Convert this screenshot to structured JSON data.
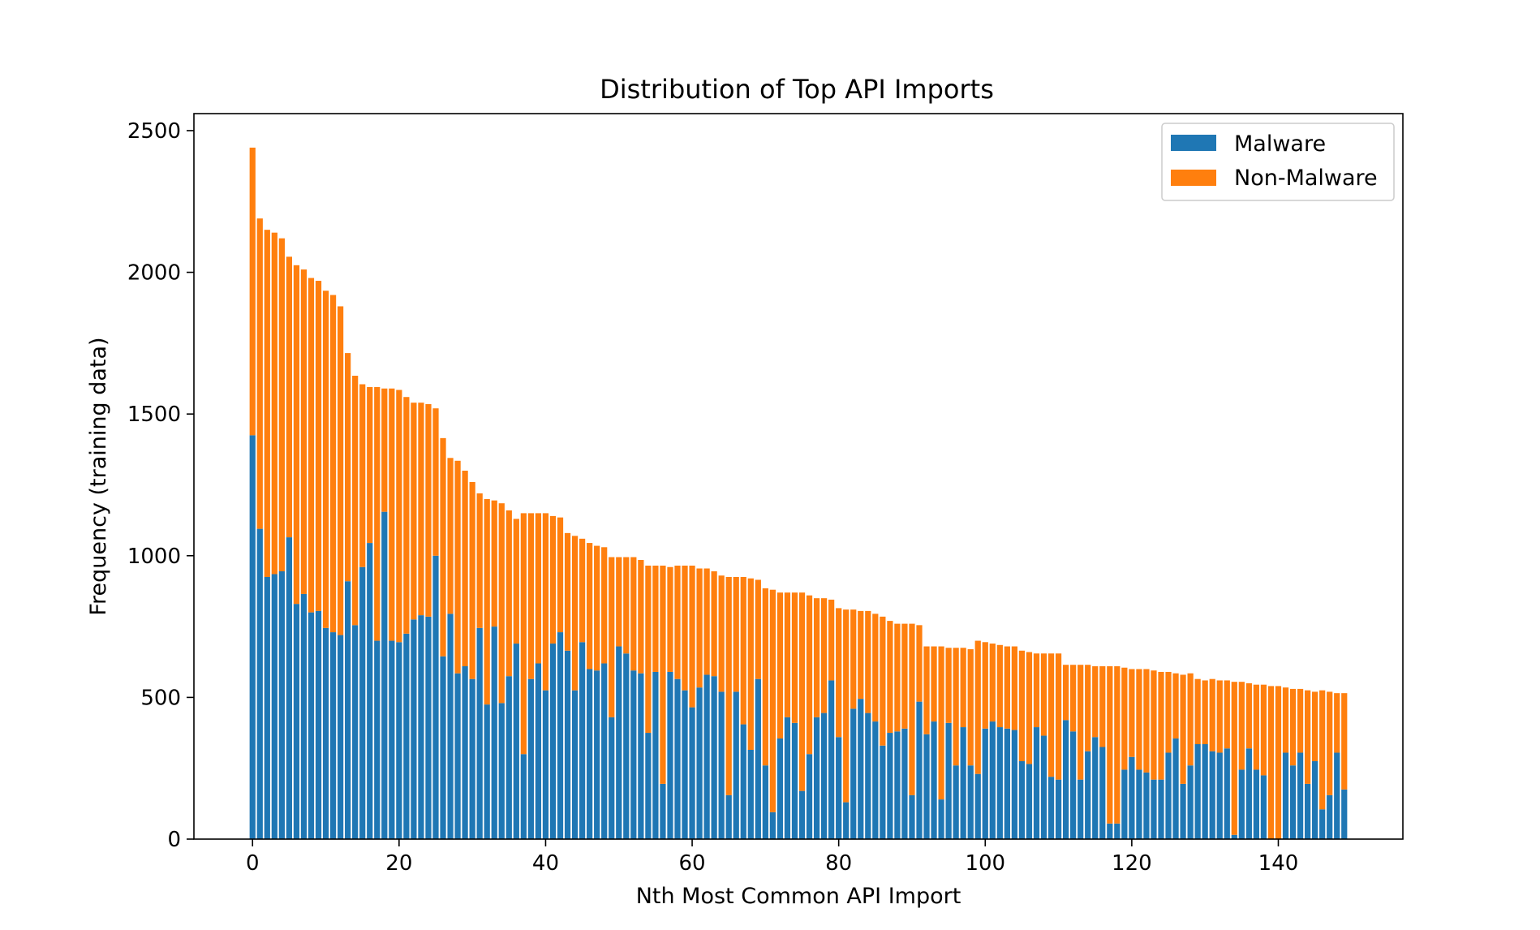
{
  "chart_data": {
    "type": "bar",
    "stacked": true,
    "title": "Distribution of Top API Imports",
    "xlabel": "Nth Most Common API Import",
    "ylabel": "Frequency (training data)",
    "xlim": [
      -8,
      157
    ],
    "ylim": [
      0,
      2560
    ],
    "xticks": [
      0,
      20,
      40,
      60,
      80,
      100,
      120,
      140
    ],
    "yticks": [
      0,
      500,
      1000,
      1500,
      2000,
      2500
    ],
    "grid": false,
    "legend_position": "top-right",
    "colors": {
      "malware": "#1f77b4",
      "non_malware": "#ff7f0e"
    },
    "series": [
      {
        "name": "Malware",
        "values": [
          1425,
          1095,
          925,
          935,
          945,
          1065,
          830,
          865,
          800,
          805,
          745,
          730,
          720,
          910,
          755,
          960,
          1045,
          700,
          1155,
          700,
          695,
          725,
          775,
          790,
          785,
          1000,
          645,
          795,
          585,
          610,
          565,
          745,
          475,
          750,
          480,
          575,
          690,
          300,
          565,
          620,
          525,
          690,
          730,
          665,
          525,
          695,
          600,
          595,
          620,
          430,
          680,
          655,
          595,
          585,
          375,
          590,
          195,
          590,
          565,
          525,
          465,
          535,
          580,
          575,
          520,
          155,
          520,
          405,
          315,
          565,
          260,
          95,
          355,
          430,
          410,
          170,
          300,
          430,
          445,
          560,
          360,
          130,
          460,
          495,
          445,
          415,
          330,
          375,
          380,
          390,
          155,
          485,
          370,
          415,
          140,
          410,
          260,
          395,
          260,
          230,
          390,
          415,
          395,
          390,
          385,
          275,
          265,
          395,
          365,
          220,
          210,
          420,
          380,
          210,
          310,
          360,
          325,
          55,
          55,
          245,
          290,
          245,
          235,
          210,
          210,
          305,
          355,
          195,
          260,
          335,
          335,
          310,
          305,
          320,
          15,
          245,
          320,
          245,
          225,
          0,
          0,
          305,
          260,
          305,
          195,
          275,
          105,
          155,
          305,
          175
        ]
      },
      {
        "name": "Non-Malware",
        "values": [
          1015,
          1095,
          1225,
          1205,
          1175,
          990,
          1195,
          1145,
          1180,
          1165,
          1190,
          1190,
          1160,
          805,
          880,
          645,
          550,
          895,
          435,
          890,
          890,
          835,
          765,
          750,
          750,
          520,
          770,
          550,
          750,
          690,
          695,
          475,
          725,
          445,
          705,
          585,
          440,
          850,
          585,
          530,
          625,
          450,
          405,
          415,
          545,
          365,
          445,
          440,
          410,
          565,
          315,
          340,
          400,
          400,
          590,
          375,
          770,
          370,
          400,
          440,
          500,
          420,
          375,
          370,
          410,
          770,
          405,
          520,
          605,
          350,
          625,
          785,
          515,
          440,
          460,
          700,
          560,
          420,
          405,
          285,
          455,
          680,
          350,
          310,
          360,
          380,
          455,
          395,
          380,
          370,
          605,
          270,
          310,
          265,
          540,
          265,
          415,
          280,
          410,
          470,
          305,
          275,
          290,
          290,
          295,
          390,
          395,
          260,
          290,
          435,
          445,
          195,
          235,
          405,
          305,
          250,
          285,
          555,
          555,
          360,
          310,
          355,
          365,
          385,
          380,
          285,
          230,
          385,
          325,
          230,
          225,
          255,
          255,
          240,
          540,
          310,
          230,
          300,
          320,
          540,
          540,
          230,
          270,
          225,
          330,
          245,
          420,
          365,
          210,
          340
        ]
      }
    ]
  }
}
